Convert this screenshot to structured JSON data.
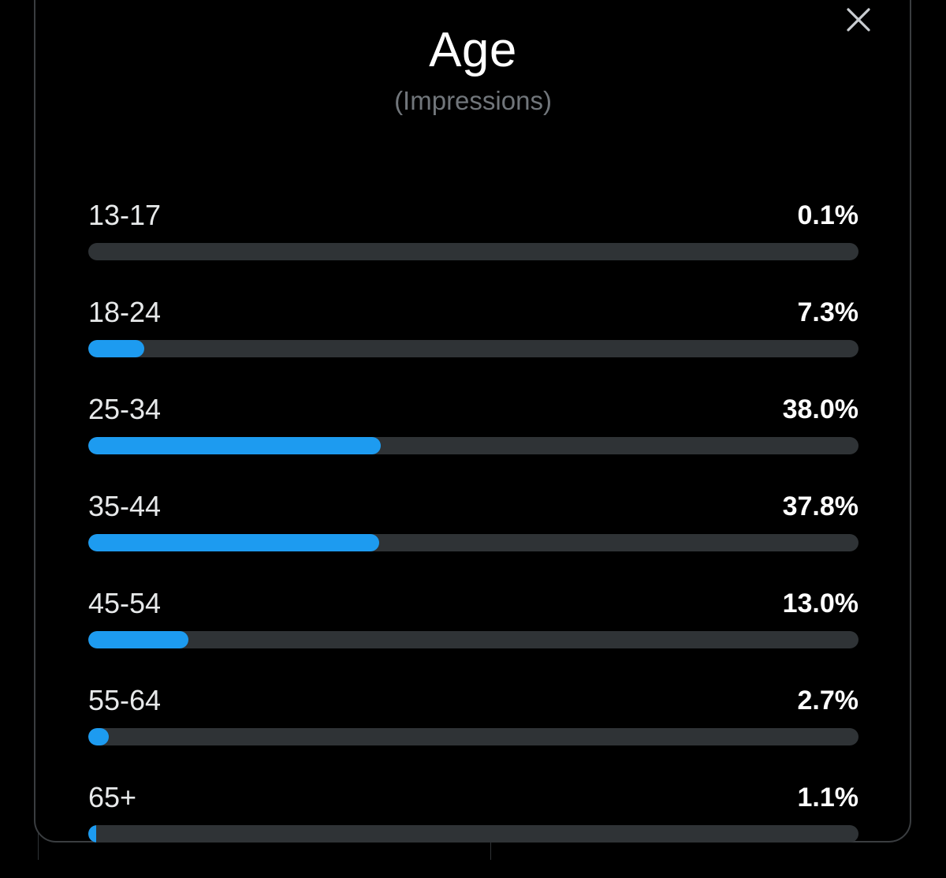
{
  "header": {
    "title": "Age",
    "subtitle": "(Impressions)",
    "close_icon": "close-icon"
  },
  "colors": {
    "accent": "#1d9bf0",
    "track": "#2f3336",
    "background": "#000000"
  },
  "chart_data": {
    "type": "bar",
    "title": "Age",
    "subtitle": "(Impressions)",
    "categories": [
      "13-17",
      "18-24",
      "25-34",
      "35-44",
      "45-54",
      "55-64",
      "65+"
    ],
    "values": [
      0.1,
      7.3,
      38.0,
      37.8,
      13.0,
      2.7,
      1.1
    ],
    "value_labels": [
      "0.1%",
      "7.3%",
      "38.0%",
      "37.8%",
      "13.0%",
      "2.7%",
      "1.1%"
    ],
    "unit": "%",
    "xlim": [
      0,
      100
    ],
    "orientation": "horizontal",
    "grid": false,
    "legend": "none"
  }
}
